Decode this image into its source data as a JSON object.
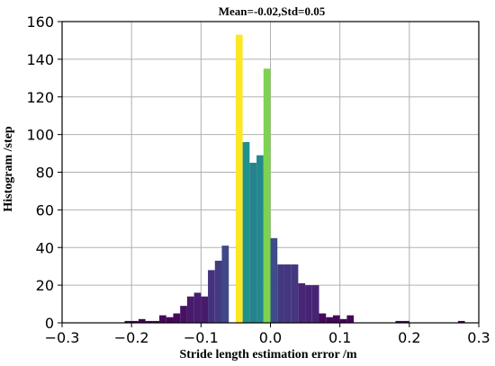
{
  "chart_data": {
    "type": "bar",
    "title": "Mean=-0.02,Std=0.05",
    "xlabel": "Stride length estimation error /m",
    "ylabel": "Histogram /step",
    "xlim": [
      -0.3,
      0.3
    ],
    "ylim": [
      0,
      160
    ],
    "x_ticks": [
      "−0.3",
      "−0.2",
      "−0.1",
      "0.0",
      "0.1",
      "0.2",
      "0.3"
    ],
    "y_ticks": [
      "0",
      "20",
      "40",
      "60",
      "80",
      "100",
      "120",
      "140",
      "160"
    ],
    "grid": true,
    "bin_width": 0.01,
    "bins": [
      {
        "x": -0.205,
        "value": 1
      },
      {
        "x": -0.195,
        "value": 1
      },
      {
        "x": -0.185,
        "value": 2
      },
      {
        "x": -0.175,
        "value": 1
      },
      {
        "x": -0.165,
        "value": 1
      },
      {
        "x": -0.155,
        "value": 4
      },
      {
        "x": -0.145,
        "value": 3
      },
      {
        "x": -0.135,
        "value": 5
      },
      {
        "x": -0.125,
        "value": 9
      },
      {
        "x": -0.115,
        "value": 14
      },
      {
        "x": -0.105,
        "value": 16
      },
      {
        "x": -0.095,
        "value": 14
      },
      {
        "x": -0.085,
        "value": 28
      },
      {
        "x": -0.075,
        "value": 33
      },
      {
        "x": -0.065,
        "value": 41
      },
      {
        "x": -0.045,
        "value": 153
      },
      {
        "x": -0.035,
        "value": 96
      },
      {
        "x": -0.025,
        "value": 85
      },
      {
        "x": -0.015,
        "value": 89
      },
      {
        "x": -0.005,
        "value": 135
      },
      {
        "x": 0.005,
        "value": 45
      },
      {
        "x": 0.015,
        "value": 31
      },
      {
        "x": 0.025,
        "value": 31
      },
      {
        "x": 0.035,
        "value": 31
      },
      {
        "x": 0.045,
        "value": 21
      },
      {
        "x": 0.055,
        "value": 20
      },
      {
        "x": 0.065,
        "value": 20
      },
      {
        "x": 0.075,
        "value": 5
      },
      {
        "x": 0.085,
        "value": 3
      },
      {
        "x": 0.095,
        "value": 4
      },
      {
        "x": 0.105,
        "value": 2
      },
      {
        "x": 0.115,
        "value": 4
      },
      {
        "x": 0.185,
        "value": 1
      },
      {
        "x": 0.195,
        "value": 1
      },
      {
        "x": 0.275,
        "value": 1
      }
    ],
    "colormap": "viridis"
  }
}
